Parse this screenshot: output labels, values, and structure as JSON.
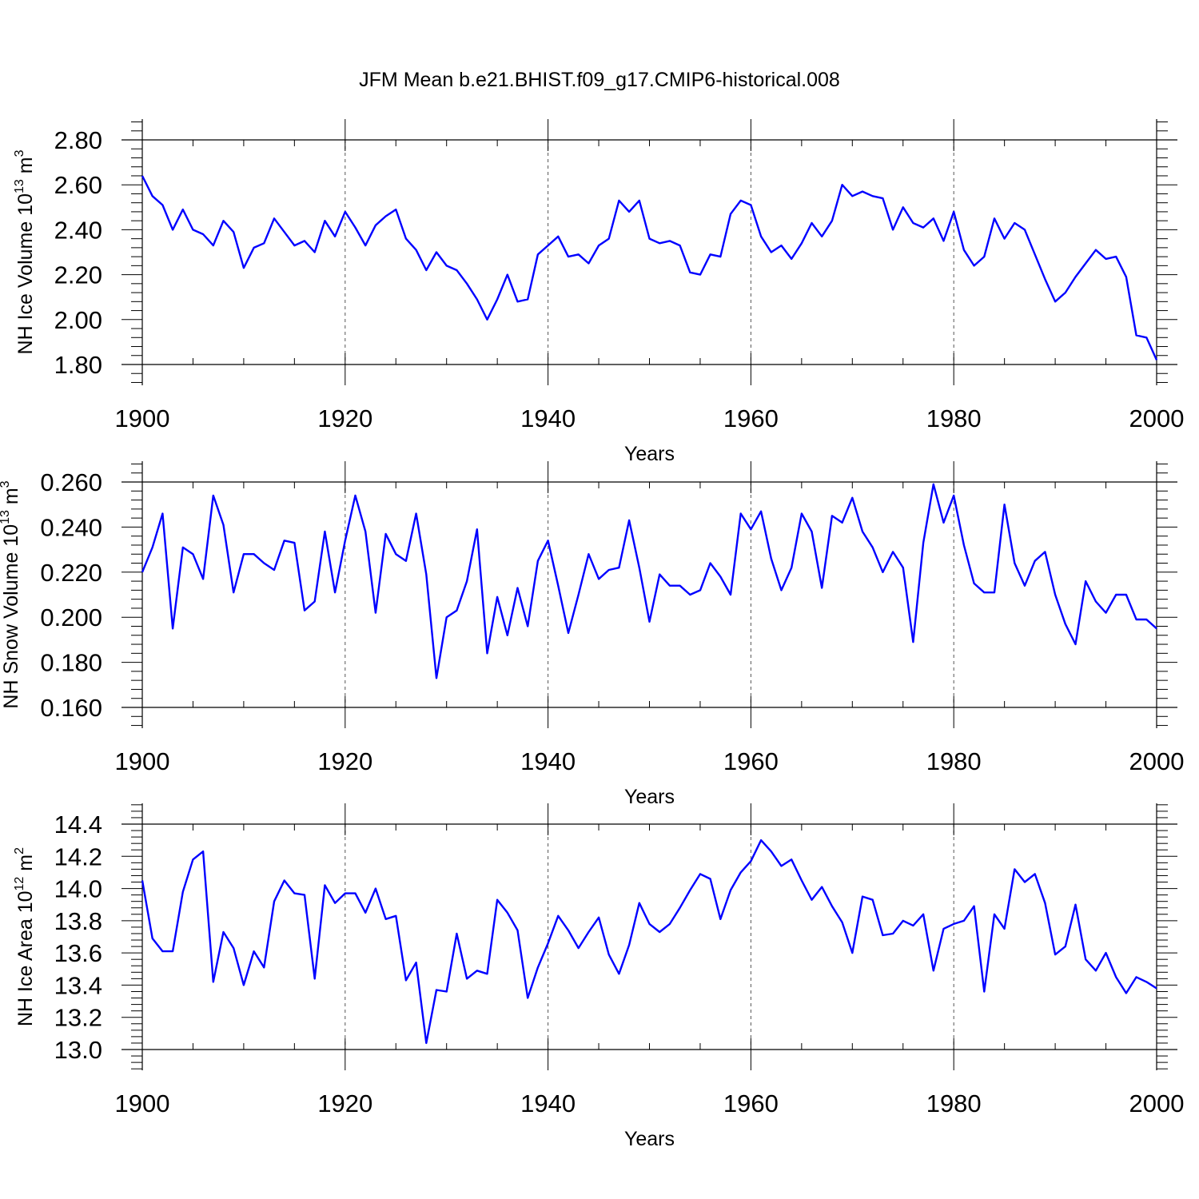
{
  "title": "JFM Mean b.e21.BHIST.f09_g17.CMIP6-historical.008",
  "chart_data": [
    {
      "type": "line",
      "ylabel": "NH Ice Volume 10",
      "ylabel_exp": "13",
      "ylabel_unit": "m",
      "ylabel_unit_exp": "3",
      "xlabel": "Years",
      "xlim": [
        1900,
        2000
      ],
      "ylim": [
        1.8,
        2.8
      ],
      "yticks": [
        "1.80",
        "2.00",
        "2.20",
        "2.40",
        "2.60",
        "2.80"
      ],
      "xticks": [
        "1900",
        "1920",
        "1940",
        "1960",
        "1980",
        "2000"
      ],
      "color": "#0000ff",
      "grid": "vertical dashed at major x ticks",
      "x_start": 1900,
      "values": [
        2.64,
        2.55,
        2.51,
        2.4,
        2.49,
        2.4,
        2.38,
        2.33,
        2.44,
        2.39,
        2.23,
        2.32,
        2.34,
        2.45,
        2.39,
        2.33,
        2.35,
        2.3,
        2.44,
        2.37,
        2.48,
        2.41,
        2.33,
        2.42,
        2.46,
        2.49,
        2.36,
        2.31,
        2.22,
        2.3,
        2.24,
        2.22,
        2.16,
        2.09,
        2.0,
        2.09,
        2.2,
        2.08,
        2.09,
        2.29,
        2.33,
        2.37,
        2.28,
        2.29,
        2.25,
        2.33,
        2.36,
        2.53,
        2.48,
        2.53,
        2.36,
        2.34,
        2.35,
        2.33,
        2.21,
        2.2,
        2.29,
        2.28,
        2.47,
        2.53,
        2.51,
        2.37,
        2.3,
        2.33,
        2.27,
        2.34,
        2.43,
        2.37,
        2.44,
        2.6,
        2.55,
        2.57,
        2.55,
        2.54,
        2.4,
        2.5,
        2.43,
        2.41,
        2.45,
        2.35,
        2.48,
        2.31,
        2.24,
        2.28,
        2.45,
        2.36,
        2.43,
        2.4,
        2.29,
        2.18,
        2.08,
        2.12,
        2.19,
        2.25,
        2.31,
        2.27,
        2.28,
        2.19,
        1.93,
        1.92,
        1.82
      ]
    },
    {
      "type": "line",
      "ylabel": "NH Snow Volume 10",
      "ylabel_exp": "13",
      "ylabel_unit": "m",
      "ylabel_unit_exp": "3",
      "xlabel": "Years",
      "xlim": [
        1900,
        2000
      ],
      "ylim": [
        0.16,
        0.26
      ],
      "yticks": [
        "0.160",
        "0.180",
        "0.200",
        "0.220",
        "0.240",
        "0.260"
      ],
      "xticks": [
        "1900",
        "1920",
        "1940",
        "1960",
        "1980",
        "2000"
      ],
      "color": "#0000ff",
      "grid": "vertical dashed at major x ticks",
      "x_start": 1900,
      "values": [
        0.22,
        0.231,
        0.246,
        0.195,
        0.231,
        0.228,
        0.217,
        0.254,
        0.241,
        0.211,
        0.228,
        0.228,
        0.224,
        0.221,
        0.234,
        0.233,
        0.203,
        0.207,
        0.238,
        0.211,
        0.234,
        0.254,
        0.238,
        0.202,
        0.237,
        0.228,
        0.225,
        0.246,
        0.219,
        0.173,
        0.2,
        0.203,
        0.216,
        0.239,
        0.184,
        0.209,
        0.192,
        0.213,
        0.196,
        0.225,
        0.234,
        0.214,
        0.193,
        0.21,
        0.228,
        0.217,
        0.221,
        0.222,
        0.243,
        0.222,
        0.198,
        0.219,
        0.214,
        0.214,
        0.21,
        0.212,
        0.224,
        0.218,
        0.21,
        0.246,
        0.239,
        0.247,
        0.226,
        0.212,
        0.222,
        0.246,
        0.238,
        0.213,
        0.245,
        0.242,
        0.253,
        0.238,
        0.231,
        0.22,
        0.229,
        0.222,
        0.189,
        0.233,
        0.259,
        0.242,
        0.254,
        0.232,
        0.215,
        0.211,
        0.211,
        0.25,
        0.224,
        0.214,
        0.225,
        0.229,
        0.21,
        0.197,
        0.188,
        0.216,
        0.207,
        0.202,
        0.21,
        0.21,
        0.199,
        0.199,
        0.195
      ]
    },
    {
      "type": "line",
      "ylabel": "NH Ice Area 10",
      "ylabel_exp": "12",
      "ylabel_unit": "m",
      "ylabel_unit_exp": "2",
      "xlabel": "Years",
      "xlim": [
        1900,
        2000
      ],
      "ylim": [
        13.0,
        14.4
      ],
      "yticks": [
        "13.0",
        "13.2",
        "13.4",
        "13.6",
        "13.8",
        "14.0",
        "14.2",
        "14.4"
      ],
      "xticks": [
        "1900",
        "1920",
        "1940",
        "1960",
        "1980",
        "2000"
      ],
      "color": "#0000ff",
      "grid": "vertical dashed at major x ticks",
      "x_start": 1900,
      "values": [
        14.05,
        13.69,
        13.61,
        13.61,
        13.98,
        14.18,
        14.23,
        13.42,
        13.73,
        13.63,
        13.4,
        13.61,
        13.51,
        13.92,
        14.05,
        13.97,
        13.96,
        13.44,
        14.02,
        13.91,
        13.97,
        13.97,
        13.85,
        14.0,
        13.81,
        13.83,
        13.43,
        13.54,
        13.04,
        13.37,
        13.36,
        13.72,
        13.44,
        13.49,
        13.47,
        13.93,
        13.85,
        13.74,
        13.32,
        13.51,
        13.66,
        13.83,
        13.74,
        13.63,
        13.73,
        13.82,
        13.59,
        13.47,
        13.65,
        13.91,
        13.78,
        13.73,
        13.78,
        13.88,
        13.99,
        14.09,
        14.06,
        13.81,
        13.99,
        14.1,
        14.17,
        14.3,
        14.23,
        14.14,
        14.18,
        14.05,
        13.93,
        14.01,
        13.89,
        13.79,
        13.6,
        13.95,
        13.93,
        13.71,
        13.72,
        13.8,
        13.77,
        13.84,
        13.49,
        13.75,
        13.78,
        13.8,
        13.89,
        13.36,
        13.84,
        13.75,
        14.12,
        14.04,
        14.09,
        13.91,
        13.59,
        13.64,
        13.9,
        13.56,
        13.49,
        13.6,
        13.45,
        13.35,
        13.45,
        13.42,
        13.38
      ]
    }
  ]
}
